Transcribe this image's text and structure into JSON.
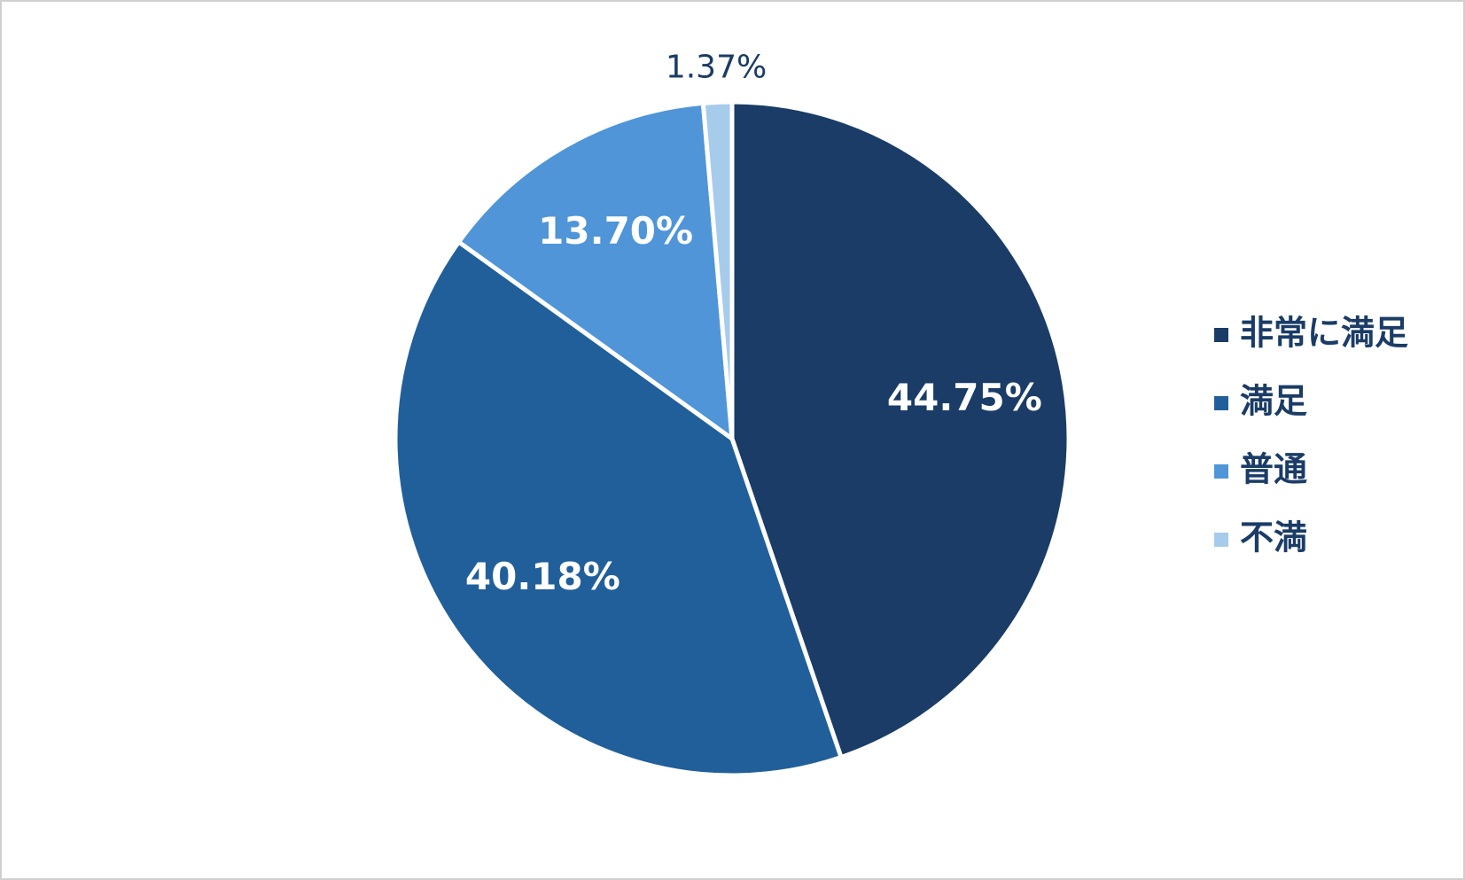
{
  "chart_data": {
    "type": "pie",
    "categories": [
      "非常に満足",
      "満足",
      "普通",
      "不満"
    ],
    "values": [
      44.75,
      40.18,
      13.7,
      1.37
    ],
    "value_labels": [
      "44.75%",
      "40.18%",
      "13.70%",
      "1.37%"
    ],
    "colors": [
      "#1a3c66",
      "#215f9a",
      "#4f95d8",
      "#a7cbeb"
    ],
    "legend": "right"
  }
}
